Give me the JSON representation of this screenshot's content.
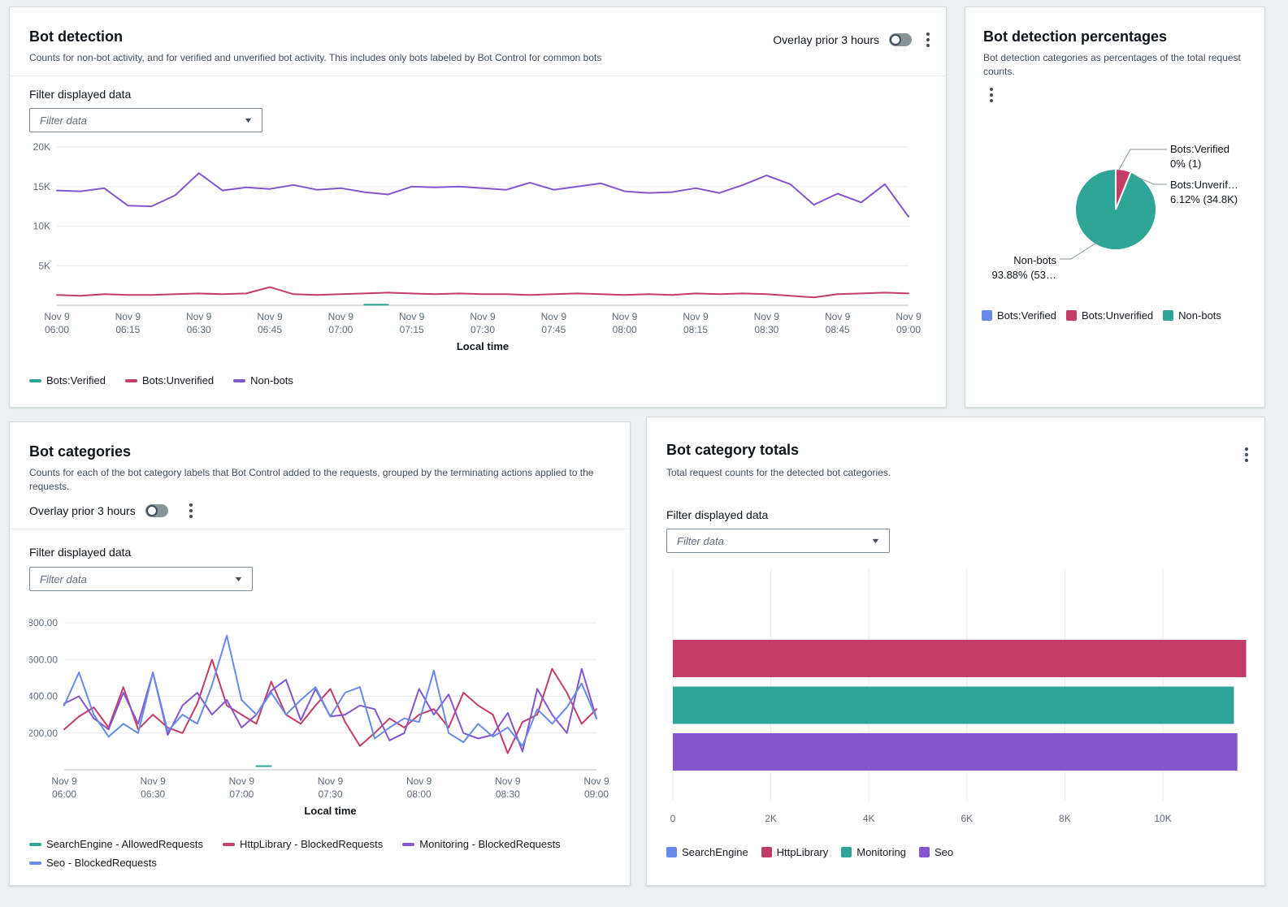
{
  "colors": {
    "blue": "#688AE8",
    "crimson": "#C33D69",
    "teal": "#2EA597",
    "purple": "#8456CE"
  },
  "panels": {
    "bot_detection": {
      "title": "Bot detection",
      "description": "Counts for non-bot activity, and for verified and unverified bot activity. This includes only bots labeled by Bot Control for common bots",
      "overlay_label": "Overlay prior 3 hours",
      "filter_label": "Filter displayed data",
      "filter_placeholder": "Filter data"
    },
    "bot_detection_percentages": {
      "title": "Bot detection percentages",
      "description": "Bot detection categories as percentages of the total request counts."
    },
    "bot_categories": {
      "title": "Bot categories",
      "description": "Counts for each of the bot category labels that Bot Control added to the requests, grouped by the terminating actions applied to the requests.",
      "overlay_label": "Overlay prior 3 hours",
      "filter_label": "Filter displayed data",
      "filter_placeholder": "Filter data"
    },
    "bot_category_totals": {
      "title": "Bot category totals",
      "description": "Total request counts for the detected bot categories.",
      "filter_label": "Filter displayed data",
      "filter_placeholder": "Filter data"
    }
  },
  "chart_data": [
    {
      "type": "line",
      "name": "bot-detection",
      "title": "Bot detection",
      "xlabel": "Local time",
      "ylim": [
        0,
        20000
      ],
      "yticks": [
        {
          "value": 5000,
          "label": "5K"
        },
        {
          "value": 10000,
          "label": "10K"
        },
        {
          "value": 15000,
          "label": "15K"
        },
        {
          "value": 20000,
          "label": "20K"
        }
      ],
      "x_ticks": [
        [
          "Nov 9",
          "06:00"
        ],
        [
          "Nov 9",
          "06:15"
        ],
        [
          "Nov 9",
          "06:30"
        ],
        [
          "Nov 9",
          "06:45"
        ],
        [
          "Nov 9",
          "07:00"
        ],
        [
          "Nov 9",
          "07:15"
        ],
        [
          "Nov 9",
          "07:30"
        ],
        [
          "Nov 9",
          "07:45"
        ],
        [
          "Nov 9",
          "08:00"
        ],
        [
          "Nov 9",
          "08:15"
        ],
        [
          "Nov 9",
          "08:30"
        ],
        [
          "Nov 9",
          "08:45"
        ],
        [
          "Nov 9",
          "09:00"
        ]
      ],
      "series": [
        {
          "name": "Bots:Verified",
          "color": "teal",
          "values": [
            null,
            null,
            null,
            null,
            null,
            null,
            null,
            null,
            null,
            null,
            null,
            null,
            null,
            80,
            80,
            null,
            null,
            null,
            null,
            null,
            null,
            null,
            null,
            null,
            null,
            null,
            null,
            null,
            null,
            null,
            null,
            null,
            null,
            null,
            null,
            null,
            null
          ]
        },
        {
          "name": "Bots:Unverified",
          "color": "crimson",
          "values": [
            1300,
            1200,
            1400,
            1300,
            1300,
            1400,
            1500,
            1400,
            1500,
            2300,
            1400,
            1300,
            1400,
            1500,
            1600,
            1500,
            1400,
            1500,
            1400,
            1400,
            1300,
            1400,
            1500,
            1400,
            1300,
            1400,
            1300,
            1500,
            1400,
            1500,
            1400,
            1200,
            1000,
            1400,
            1500,
            1600,
            1500
          ]
        },
        {
          "name": "Non-bots",
          "color": "purple",
          "values": [
            14500,
            14400,
            14800,
            12600,
            12500,
            13900,
            16700,
            14500,
            14900,
            14700,
            15200,
            14600,
            14800,
            14300,
            14000,
            15000,
            14900,
            15000,
            14800,
            14600,
            15500,
            14600,
            15000,
            15400,
            14400,
            14200,
            14300,
            14800,
            14200,
            15200,
            16400,
            15300,
            12700,
            14100,
            13000,
            15300,
            11200
          ]
        }
      ]
    },
    {
      "type": "pie",
      "name": "bot-detection-percentages",
      "title": "Bot detection percentages",
      "slices": [
        {
          "name": "Bots:Verified",
          "color": "blue",
          "pct": 0.002,
          "display_name": "Bots:Verified",
          "value_label": "0% (1)"
        },
        {
          "name": "Bots:Unverified",
          "color": "crimson",
          "pct": 6.12,
          "display_name": "Bots:Unverif…",
          "value_label": "6.12% (34.8K)"
        },
        {
          "name": "Non-bots",
          "color": "teal",
          "pct": 93.878,
          "display_name": "Non-bots",
          "value_label": "93.88% (53…"
        }
      ]
    },
    {
      "type": "line",
      "name": "bot-categories",
      "title": "Bot categories",
      "xlabel": "Local time",
      "ylim": [
        0,
        800
      ],
      "yticks": [
        {
          "value": 200,
          "label": "200.00"
        },
        {
          "value": 400,
          "label": "400.00"
        },
        {
          "value": 600,
          "label": "600.00"
        },
        {
          "value": 800,
          "label": "800.00"
        }
      ],
      "x_ticks": [
        [
          "Nov 9",
          "06:00"
        ],
        [
          "Nov 9",
          "06:30"
        ],
        [
          "Nov 9",
          "07:00"
        ],
        [
          "Nov 9",
          "07:30"
        ],
        [
          "Nov 9",
          "08:00"
        ],
        [
          "Nov 9",
          "08:30"
        ],
        [
          "Nov 9",
          "09:00"
        ]
      ],
      "series": [
        {
          "name": "SearchEngine - AllowedRequests",
          "color": "teal",
          "values": [
            null,
            null,
            null,
            null,
            null,
            null,
            null,
            null,
            null,
            null,
            null,
            null,
            null,
            20,
            20,
            null,
            null,
            null,
            null,
            null,
            null,
            null,
            null,
            null,
            null,
            null,
            null,
            null,
            null,
            null,
            null,
            null,
            null,
            null,
            null,
            null,
            null
          ]
        },
        {
          "name": "HttpLibrary - BlockedRequests",
          "color": "crimson",
          "values": [
            220,
            290,
            340,
            230,
            450,
            220,
            300,
            230,
            200,
            360,
            600,
            350,
            300,
            250,
            480,
            300,
            250,
            350,
            440,
            260,
            130,
            200,
            280,
            230,
            300,
            330,
            230,
            420,
            350,
            300,
            90,
            260,
            300,
            550,
            420,
            250,
            330
          ]
        },
        {
          "name": "Monitoring - BlockedRequests",
          "color": "purple",
          "values": [
            360,
            400,
            280,
            220,
            420,
            250,
            530,
            190,
            350,
            420,
            300,
            380,
            230,
            300,
            430,
            490,
            270,
            440,
            290,
            300,
            350,
            330,
            160,
            200,
            440,
            300,
            410,
            200,
            170,
            190,
            310,
            100,
            440,
            300,
            200,
            550,
            280
          ]
        },
        {
          "name": "Seo - BlockedRequests",
          "color": "blue",
          "values": [
            350,
            530,
            300,
            180,
            250,
            200,
            530,
            210,
            300,
            250,
            460,
            730,
            380,
            300,
            420,
            300,
            380,
            450,
            290,
            420,
            450,
            170,
            230,
            280,
            260,
            540,
            200,
            150,
            250,
            180,
            230,
            130,
            330,
            250,
            340,
            470,
            280
          ]
        }
      ]
    },
    {
      "type": "bar",
      "name": "bot-category-totals",
      "title": "Bot category totals",
      "orientation": "horizontal",
      "xlim": [
        0,
        11700
      ],
      "xticks": [
        {
          "value": 0,
          "label": "0"
        },
        {
          "value": 2000,
          "label": "2K"
        },
        {
          "value": 4000,
          "label": "4K"
        },
        {
          "value": 6000,
          "label": "6K"
        },
        {
          "value": 8000,
          "label": "8K"
        },
        {
          "value": 10000,
          "label": "10K"
        }
      ],
      "series": [
        {
          "name": "SearchEngine",
          "color": "blue",
          "value": 0
        },
        {
          "name": "HttpLibrary",
          "color": "crimson",
          "value": 11700
        },
        {
          "name": "Monitoring",
          "color": "teal",
          "value": 11450
        },
        {
          "name": "Seo",
          "color": "purple",
          "value": 11520
        }
      ]
    }
  ]
}
